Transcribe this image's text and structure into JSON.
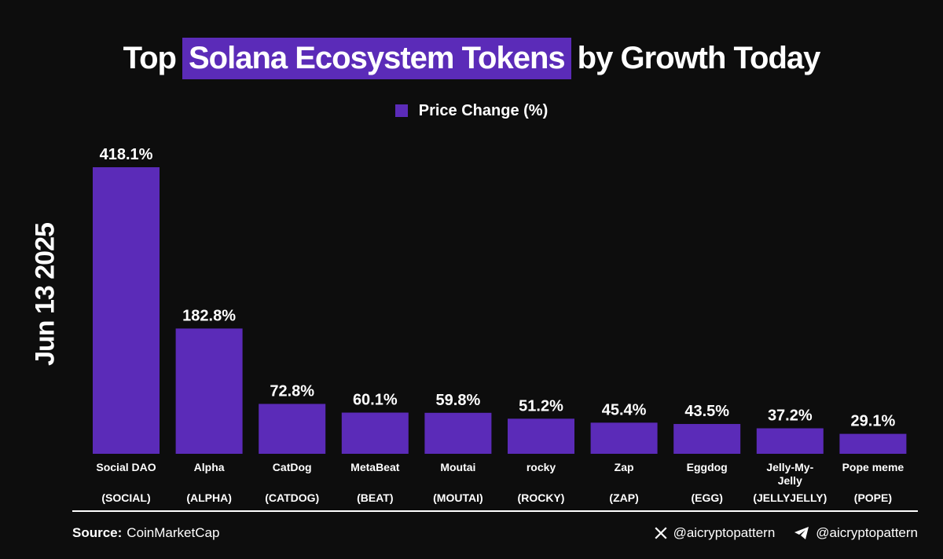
{
  "title": {
    "prefix": "Top",
    "highlight": "Solana Ecosystem Tokens",
    "suffix": "by Growth Today"
  },
  "side_label": "Jun 13 2025",
  "colors": {
    "bar": "#5b2bb8",
    "background": "#0d0d0d",
    "text": "#ffffff"
  },
  "chart_data": {
    "type": "bar",
    "title": "Top Solana Ecosystem Tokens by Growth Today",
    "legend": {
      "label": "Price Change (%)",
      "placement": "top-center"
    },
    "categories": [
      "Social DAO",
      "Alpha",
      "CatDog",
      "MetaBeat",
      "Moutai",
      "rocky",
      "Zap",
      "Eggdog",
      "Jelly-My-Jelly",
      "Pope meme"
    ],
    "tickers": [
      "(SOCIAL)",
      "(ALPHA)",
      "(CATDOG)",
      "(BEAT)",
      "(MOUTAI)",
      "(ROCKY)",
      "(ZAP)",
      "(EGG)",
      "(JELLYJELLY)",
      "(POPE)"
    ],
    "values": [
      418.1,
      182.8,
      72.8,
      60.1,
      59.8,
      51.2,
      45.4,
      43.5,
      37.2,
      29.1
    ],
    "value_labels": [
      "418.1%",
      "182.8%",
      "72.8%",
      "60.1%",
      "59.8%",
      "51.2%",
      "45.4%",
      "43.5%",
      "37.2%",
      "29.1%"
    ],
    "ylim": [
      0,
      418.1
    ],
    "grid": false
  },
  "footer": {
    "source_key": "Source:",
    "source_value": "CoinMarketCap",
    "handles": [
      {
        "icon": "x-logo-icon",
        "text": "@aicryptopattern"
      },
      {
        "icon": "telegram-icon",
        "text": "@aicryptopattern"
      }
    ]
  }
}
